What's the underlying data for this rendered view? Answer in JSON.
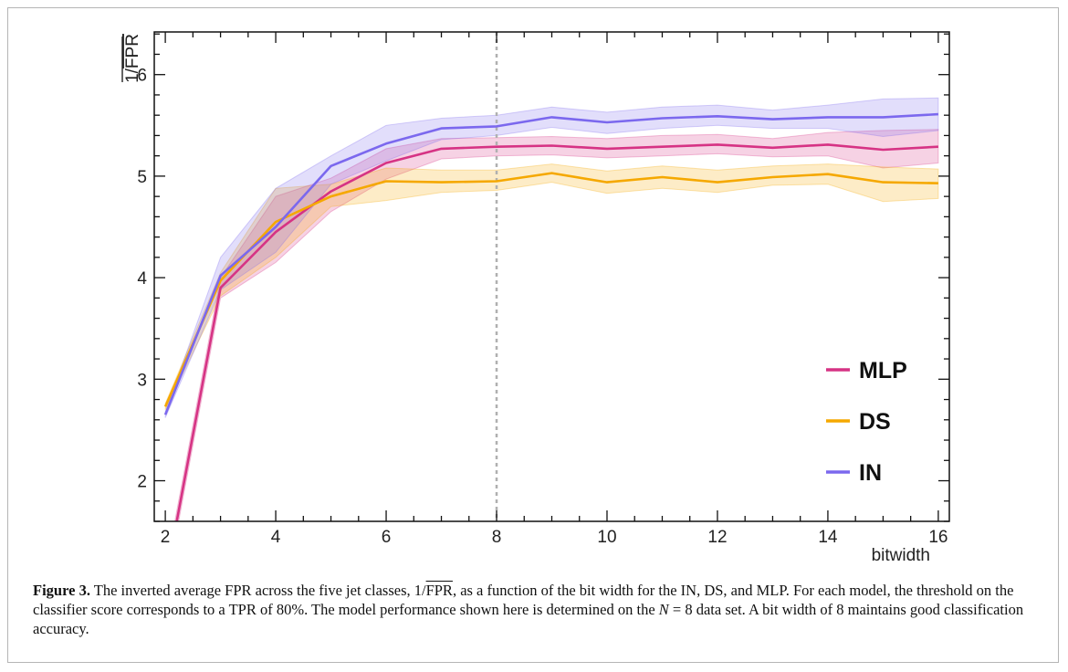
{
  "chart_data": {
    "type": "line",
    "title": "",
    "xlabel": "bitwidth",
    "ylabel_prefix": "1/",
    "ylabel_overlined": "FPR",
    "xlim": [
      1.8,
      16.2
    ],
    "ylim": [
      1.6,
      6.42
    ],
    "xticks": [
      2,
      4,
      6,
      8,
      10,
      12,
      14,
      16
    ],
    "yticks": [
      2,
      3,
      4,
      5,
      6
    ],
    "reference_line_x": 8,
    "grid": false,
    "legend_position": "bottom-right",
    "x": [
      2,
      3,
      4,
      5,
      6,
      7,
      8,
      9,
      10,
      11,
      12,
      13,
      14,
      15,
      16
    ],
    "series": [
      {
        "name": "MLP",
        "color": "#d63384",
        "values": [
          1.0,
          3.9,
          4.45,
          4.85,
          5.13,
          5.27,
          5.29,
          5.3,
          5.27,
          5.29,
          5.31,
          5.28,
          5.31,
          5.26,
          5.29
        ],
        "band_lower": [
          0.9,
          3.8,
          4.15,
          4.65,
          4.97,
          5.17,
          5.2,
          5.21,
          5.18,
          5.2,
          5.22,
          5.19,
          5.2,
          5.08,
          5.13
        ],
        "band_upper": [
          1.1,
          4.0,
          4.8,
          4.98,
          5.27,
          5.37,
          5.38,
          5.39,
          5.37,
          5.4,
          5.41,
          5.37,
          5.43,
          5.45,
          5.46
        ]
      },
      {
        "name": "DS",
        "color": "#f5a800",
        "values": [
          2.73,
          3.97,
          4.55,
          4.8,
          4.95,
          4.94,
          4.95,
          5.03,
          4.94,
          4.99,
          4.94,
          4.99,
          5.02,
          4.94,
          4.93
        ],
        "band_lower": [
          2.7,
          3.82,
          4.2,
          4.7,
          4.76,
          4.84,
          4.86,
          4.94,
          4.83,
          4.88,
          4.84,
          4.91,
          4.92,
          4.75,
          4.78
        ],
        "band_upper": [
          2.76,
          4.05,
          4.88,
          4.92,
          5.08,
          5.06,
          5.06,
          5.12,
          5.05,
          5.1,
          5.06,
          5.1,
          5.12,
          5.09,
          5.07
        ]
      },
      {
        "name": "IN",
        "color": "#7b68ee",
        "values": [
          2.65,
          4.02,
          4.5,
          5.1,
          5.32,
          5.47,
          5.49,
          5.58,
          5.53,
          5.57,
          5.59,
          5.56,
          5.58,
          5.58,
          5.61
        ],
        "band_lower": [
          2.62,
          3.88,
          4.25,
          4.92,
          5.15,
          5.36,
          5.4,
          5.48,
          5.42,
          5.47,
          5.5,
          5.47,
          5.47,
          5.39,
          5.45
        ],
        "band_upper": [
          2.68,
          4.2,
          4.88,
          5.2,
          5.5,
          5.57,
          5.6,
          5.68,
          5.63,
          5.68,
          5.7,
          5.65,
          5.7,
          5.76,
          5.77
        ]
      }
    ]
  },
  "caption": {
    "label": "Figure 3.",
    "text_1": " The inverted average FPR across the five jet classes, 1/",
    "overlined": "FPR",
    "text_2": ", as a function of the bit width for the IN, DS, and MLP. For each model, the threshold on the classifier score corresponds to a TPR of 80%. The model performance shown here is determined on the ",
    "var": "N",
    "text_3": " = 8 data set. A bit width of 8 maintains good classification accuracy."
  }
}
